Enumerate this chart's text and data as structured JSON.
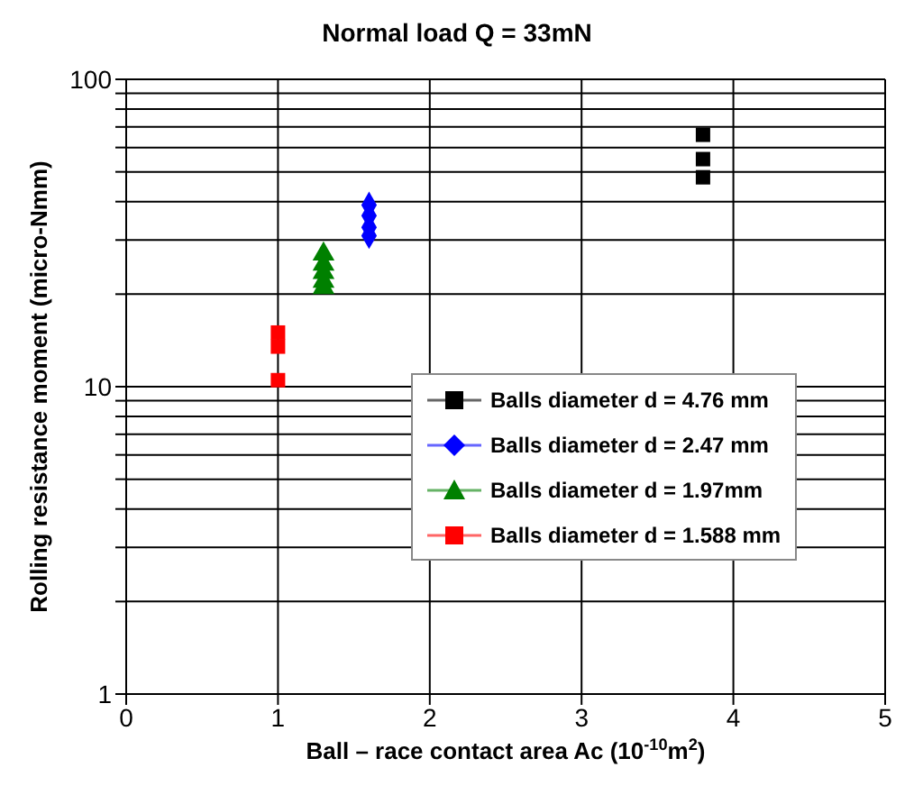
{
  "chart_data": {
    "type": "scatter",
    "title": "Normal load Q = 33mN",
    "xlabel": "Ball – race contact area Ac (10$^{-10}$m$^{2}$)",
    "ylabel": "Rolling resistance moment (micro-Nmm)",
    "log": "y",
    "grid": true,
    "legend": "bottom right",
    "xlim": [
      0,
      5
    ],
    "xticks": [
      0,
      1,
      2,
      3,
      4,
      5
    ],
    "ylim": [
      1,
      100
    ],
    "yticks": [
      1,
      {
        "value": 2,
        "label": null
      },
      {
        "value": 3,
        "label": null
      },
      {
        "value": 4,
        "label": null
      },
      {
        "value": 5,
        "label": null
      },
      {
        "value": 6,
        "label": null
      },
      {
        "value": 7,
        "label": null
      },
      {
        "value": 8,
        "label": null
      },
      {
        "value": 9,
        "label": null
      },
      10,
      {
        "value": 20,
        "label": null
      },
      {
        "value": 30,
        "label": null
      },
      {
        "value": 40,
        "label": null
      },
      {
        "value": 50,
        "label": null
      },
      {
        "value": 60,
        "label": null
      },
      {
        "value": 70,
        "label": null
      },
      {
        "value": 80,
        "label": null
      },
      {
        "value": 90,
        "label": null
      },
      100
    ],
    "series": [
      {
        "name": "Balls diameter d = 4.76 mm",
        "color": "#000000",
        "marker": "square",
        "x": [
          3.8,
          3.8,
          3.8
        ],
        "values": [
          66,
          55,
          48
        ]
      },
      {
        "name": "Balls diameter d = 2.47 mm",
        "color": "#0000ff",
        "marker": "diamond",
        "x": [
          1.6,
          1.6,
          1.6,
          1.6
        ],
        "values": [
          39,
          36,
          33,
          31
        ]
      },
      {
        "name": "Balls diameter d = 1.97mm",
        "color": "#008000",
        "marker": "triangle",
        "x": [
          1.3,
          1.3,
          1.3,
          1.3,
          1.3
        ],
        "values": [
          27,
          25,
          23.5,
          22,
          21
        ]
      },
      {
        "name": "Balls diameter d = 1.588 mm",
        "color": "#ff0000",
        "marker": "square",
        "x": [
          1.0,
          1.0,
          1.0
        ],
        "values": [
          15,
          13.5,
          10.5
        ]
      }
    ]
  }
}
